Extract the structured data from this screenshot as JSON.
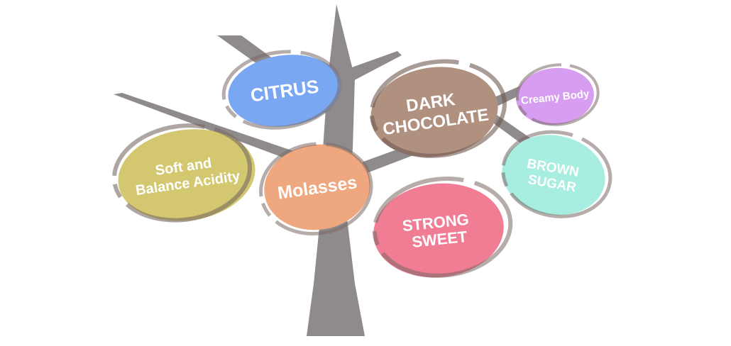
{
  "colors": {
    "trunk": "#8f8b8c",
    "ring": "#7a6a64",
    "text": "#ffffff"
  },
  "bubbles": [
    {
      "id": "citrus",
      "lines": [
        "CITRUS"
      ],
      "fill": "#7aa7f2"
    },
    {
      "id": "dark-chocolate",
      "lines": [
        "DARK",
        "CHOCOLATE"
      ],
      "fill": "#b0907f"
    },
    {
      "id": "creamy-body",
      "lines": [
        "Creamy Body"
      ],
      "fill": "#d69df0"
    },
    {
      "id": "soft-balance-acidity",
      "lines": [
        "Soft and",
        "Balance Acidity"
      ],
      "fill": "#d3c86f"
    },
    {
      "id": "molasses",
      "lines": [
        "Molasses"
      ],
      "fill": "#eea77f"
    },
    {
      "id": "brown-sugar",
      "lines": [
        "BROWN",
        "SUGAR"
      ],
      "fill": "#a7ede0"
    },
    {
      "id": "strong-sweet",
      "lines": [
        "STRONG",
        "SWEET"
      ],
      "fill": "#f07d94"
    }
  ]
}
